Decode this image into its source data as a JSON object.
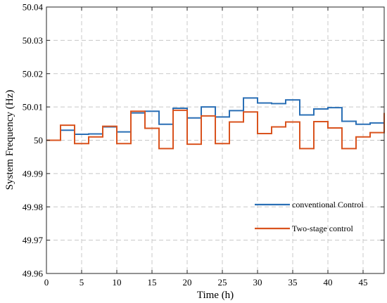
{
  "chart_data": {
    "type": "line",
    "step": true,
    "xlabel": "Time (h)",
    "ylabel": "System Frequency (Hz)",
    "xlim": [
      0,
      48
    ],
    "ylim": [
      49.96,
      50.04
    ],
    "xticks": [
      0,
      5,
      10,
      15,
      20,
      25,
      30,
      35,
      40,
      45
    ],
    "xtick_labels": [
      "0",
      "5",
      "10",
      "15",
      "20",
      "25",
      "30",
      "35",
      "40",
      "45"
    ],
    "yticks": [
      49.96,
      49.97,
      49.98,
      49.99,
      50,
      50.01,
      50.02,
      50.03,
      50.04
    ],
    "ytick_labels": [
      "49.96",
      "49.97",
      "49.98",
      "49.99",
      "50",
      "50.01",
      "50.02",
      "50.03",
      "50.04"
    ],
    "grid": true,
    "legend": "right",
    "series": [
      {
        "name": "conventional Control",
        "color": "#2a6fb5",
        "x": [
          0,
          2,
          4,
          6,
          8,
          10,
          12,
          14,
          16,
          18,
          20,
          22,
          24,
          26,
          28,
          30,
          32,
          34,
          36,
          38,
          40,
          42,
          44,
          46,
          48
        ],
        "y": [
          50.0,
          50.003,
          50.0018,
          50.0019,
          50.004,
          50.0025,
          50.0082,
          50.0087,
          50.0048,
          50.0096,
          50.0067,
          50.01,
          50.007,
          50.0089,
          50.0127,
          50.0112,
          50.011,
          50.0121,
          50.0076,
          50.0094,
          50.0098,
          50.0057,
          50.0048,
          50.0052,
          50.0052
        ]
      },
      {
        "name": "Two-stage control",
        "color": "#d9531e",
        "x": [
          0,
          2,
          4,
          6,
          8,
          10,
          12,
          14,
          16,
          18,
          20,
          22,
          24,
          26,
          28,
          30,
          32,
          34,
          36,
          38,
          40,
          42,
          44,
          46,
          48
        ],
        "y": [
          50.0,
          50.0045,
          49.999,
          50.001,
          50.0042,
          49.999,
          50.0087,
          50.0036,
          49.9975,
          50.009,
          49.9988,
          50.0073,
          49.999,
          50.0055,
          50.0085,
          50.002,
          50.004,
          50.0055,
          49.9975,
          50.0056,
          50.0037,
          49.9975,
          50.001,
          50.0023,
          50.0082
        ]
      }
    ]
  }
}
